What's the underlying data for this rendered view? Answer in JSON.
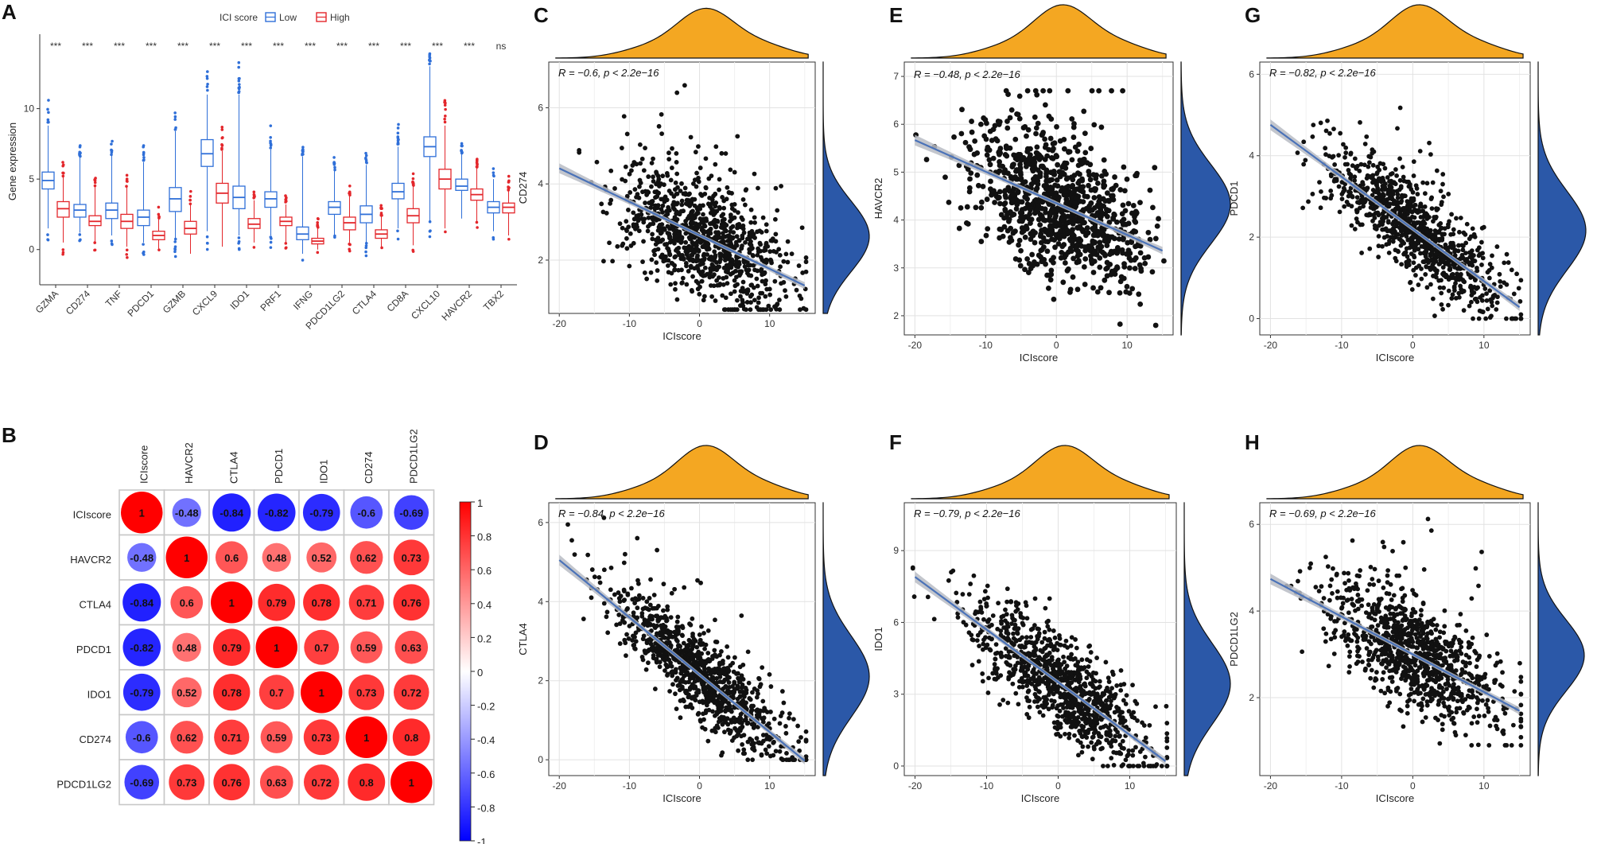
{
  "panels": {
    "A": "A",
    "B": "B",
    "C": "C",
    "D": "D",
    "E": "E",
    "F": "F",
    "G": "G",
    "H": "H"
  },
  "colors": {
    "low": "#2f6fd8",
    "high": "#e3262b",
    "density_top": "#f4a722",
    "density_right": "#2b58a8",
    "points": "#111111",
    "fit_line": "#4a72b8",
    "fit_band": "#b9bcc4"
  },
  "chart_data": [
    {
      "id": "A",
      "type": "box",
      "legend_title": "ICI score",
      "legend": [
        "Low",
        "High"
      ],
      "ylabel": "Gene expression",
      "ylim": [
        -2.5,
        15
      ],
      "yticks": [
        0,
        5,
        10
      ],
      "categories": [
        "GZMA",
        "CD274",
        "TNF",
        "PDCD1",
        "GZMB",
        "CXCL9",
        "IDO1",
        "PRF1",
        "IFNG",
        "PDCD1LG2",
        "CTLA4",
        "CD8A",
        "CXCL10",
        "HAVCR2",
        "TBX2"
      ],
      "significance": [
        "***",
        "***",
        "***",
        "***",
        "***",
        "***",
        "***",
        "***",
        "***",
        "***",
        "***",
        "***",
        "***",
        "***",
        "ns"
      ],
      "series": [
        {
          "name": "Low",
          "box": [
            [
              1.5,
              4.3,
              4.9,
              5.5,
              8.8
            ],
            [
              1.2,
              2.3,
              2.8,
              3.2,
              6.6
            ],
            [
              1.0,
              2.2,
              2.8,
              3.3,
              6.7
            ],
            [
              0.5,
              1.7,
              2.3,
              2.8,
              6.2
            ],
            [
              0.8,
              2.7,
              3.6,
              4.4,
              8.4
            ],
            [
              1.3,
              5.9,
              6.8,
              7.8,
              11.0
            ],
            [
              1.0,
              2.9,
              3.7,
              4.5,
              11.0
            ],
            [
              1.0,
              3.0,
              3.6,
              4.1,
              7.1
            ],
            [
              -0.3,
              0.7,
              1.1,
              1.6,
              6.6
            ],
            [
              1.0,
              2.5,
              3.0,
              3.4,
              5.6
            ],
            [
              0.5,
              1.9,
              2.5,
              3.1,
              6.0
            ],
            [
              1.5,
              3.6,
              4.1,
              4.7,
              7.3
            ],
            [
              2.0,
              6.6,
              7.3,
              8.0,
              13.0
            ],
            [
              2.2,
              4.2,
              4.5,
              5.0,
              6.8
            ],
            [
              1.3,
              2.6,
              3.0,
              3.4,
              5.0
            ]
          ]
        },
        {
          "name": "High",
          "box": [
            [
              0.5,
              2.3,
              2.9,
              3.4,
              5.2
            ],
            [
              0.5,
              1.7,
              2.0,
              2.4,
              4.5
            ],
            [
              0.2,
              1.5,
              2.0,
              2.5,
              4.4
            ],
            [
              0.0,
              0.7,
              1.0,
              1.3,
              2.2
            ],
            [
              -0.3,
              1.1,
              1.5,
              2.0,
              3.2
            ],
            [
              0.2,
              3.3,
              4.0,
              4.7,
              7.0
            ],
            [
              0.5,
              1.5,
              1.8,
              2.2,
              3.5
            ],
            [
              0.5,
              1.7,
              2.0,
              2.3,
              3.2
            ],
            [
              0.0,
              0.4,
              0.6,
              0.8,
              1.5
            ],
            [
              0.5,
              1.4,
              1.9,
              2.3,
              3.8
            ],
            [
              0.2,
              0.8,
              1.1,
              1.4,
              2.4
            ],
            [
              0.3,
              1.9,
              2.4,
              2.9,
              4.5
            ],
            [
              1.5,
              4.3,
              5.0,
              5.7,
              8.8
            ],
            [
              2.0,
              3.5,
              3.9,
              4.3,
              5.8
            ],
            [
              1.0,
              2.6,
              3.0,
              3.3,
              4.2
            ]
          ]
        }
      ]
    },
    {
      "id": "B",
      "type": "heatmap",
      "labels": [
        "ICIscore",
        "HAVCR2",
        "CTLA4",
        "PDCD1",
        "IDO1",
        "CD274",
        "PDCD1LG2"
      ],
      "matrix": [
        [
          1,
          -0.48,
          -0.84,
          -0.82,
          -0.79,
          -0.6,
          -0.69
        ],
        [
          -0.48,
          1,
          0.6,
          0.48,
          0.52,
          0.62,
          0.73
        ],
        [
          -0.84,
          0.6,
          1,
          0.79,
          0.78,
          0.71,
          0.76
        ],
        [
          -0.82,
          0.48,
          0.79,
          1,
          0.7,
          0.59,
          0.63
        ],
        [
          -0.79,
          0.52,
          0.78,
          0.7,
          1,
          0.73,
          0.72
        ],
        [
          -0.6,
          0.62,
          0.71,
          0.59,
          0.73,
          1,
          0.8
        ],
        [
          -0.69,
          0.73,
          0.76,
          0.63,
          0.72,
          0.8,
          1
        ]
      ],
      "cell_labels": [
        [
          "1",
          "-0.48",
          "-0.84",
          "-0.82",
          "-0.79",
          "-0.6",
          "-0.69"
        ],
        [
          "-0.48",
          "1",
          "0.6",
          "0.48",
          "0.52",
          "0.62",
          "0.73"
        ],
        [
          "-0.84",
          "0.6",
          "1",
          "0.79",
          "0.78",
          "0.71",
          "0.76"
        ],
        [
          "-0.82",
          "0.48",
          "0.79",
          "1",
          "0.7",
          "0.59",
          "0.63"
        ],
        [
          "-0.79",
          "0.52",
          "0.78",
          "0.7",
          "1",
          "0.73",
          "0.72"
        ],
        [
          "-0.6",
          "0.62",
          "0.71",
          "0.59",
          "0.73",
          "1",
          "0.8"
        ],
        [
          "-0.69",
          "0.73",
          "0.76",
          "0.63",
          "0.72",
          "0.8",
          "1"
        ]
      ],
      "colorbar_ticks": [
        "1",
        "0.8",
        "0.6",
        "0.4",
        "0.2",
        "0",
        "-0.2",
        "-0.4",
        "-0.6",
        "-0.8",
        "-1"
      ]
    },
    {
      "id": "C",
      "type": "scatter",
      "xlabel": "ICIscore",
      "ylabel": "CD274",
      "xlim": [
        -21.5,
        16.5
      ],
      "ylim": [
        0.6,
        7.2
      ],
      "xticks": [
        "-20",
        "-10",
        "0",
        "10"
      ],
      "yticks": [
        2,
        4,
        6
      ],
      "ytick_labels": [
        "2",
        "4",
        "6"
      ],
      "slope": -0.088,
      "intercept": 2.65,
      "spread": 0.75,
      "n": 1000,
      "ymin_clip": 0.7,
      "ymax_clip": 6.9,
      "r_label": "R = −0.6, p < 2.2e−16",
      "point_size": 2.9,
      "point_hint": "4.4:−20"
    },
    {
      "id": "D",
      "type": "scatter",
      "xlabel": "ICIscore",
      "ylabel": "CTLA4",
      "xlim": [
        -21.5,
        16.5
      ],
      "ylim": [
        -0.4,
        6.5
      ],
      "xticks": [
        "-20",
        "-10",
        "0",
        "10"
      ],
      "yticks": [
        0,
        2,
        4,
        6
      ],
      "ytick_labels": [
        "0",
        "2",
        "4",
        "6"
      ],
      "slope": -0.145,
      "intercept": 2.15,
      "spread": 0.5,
      "n": 1000,
      "ymin_clip": 0.0,
      "ymax_clip": 6.2,
      "r_label": "R = −0.84, p < 2.2e−16",
      "point_size": 2.9,
      "point_hint": ""
    },
    {
      "id": "E",
      "type": "scatter",
      "xlabel": "ICIscore",
      "ylabel": "HAVCR2",
      "xlim": [
        -21.5,
        16.5
      ],
      "ylim": [
        1.6,
        7.3
      ],
      "xticks": [
        "-20",
        "-10",
        "0",
        "10"
      ],
      "yticks": [
        2,
        3,
        4,
        5,
        6,
        7
      ],
      "ytick_labels": [
        "2",
        "3",
        "4",
        "5",
        "6",
        "7"
      ],
      "slope": -0.066,
      "intercept": 4.35,
      "spread": 0.72,
      "n": 1000,
      "ymin_clip": 1.8,
      "ymax_clip": 6.7,
      "r_label": "R = −0.48, p < 2.2e−16",
      "point_size": 3.4,
      "point_hint": ""
    },
    {
      "id": "F",
      "type": "scatter",
      "xlabel": "ICIscore",
      "ylabel": "IDO1",
      "xlim": [
        -21.5,
        16.5
      ],
      "ylim": [
        -0.4,
        11
      ],
      "xticks": [
        "-20",
        "-10",
        "0",
        "10"
      ],
      "yticks": [
        0,
        3,
        6,
        9
      ],
      "ytick_labels": [
        "0",
        "3",
        "6",
        "9"
      ],
      "slope": -0.22,
      "intercept": 3.5,
      "spread": 1.0,
      "n": 1000,
      "ymin_clip": 0.0,
      "ymax_clip": 10.5,
      "r_label": "R = −0.79, p < 2.2e−16",
      "point_size": 2.9,
      "point_hint": ""
    },
    {
      "id": "G",
      "type": "scatter",
      "xlabel": "ICIscore",
      "ylabel": "PDCD1",
      "xlim": [
        -21.5,
        16.5
      ],
      "ylim": [
        -0.4,
        6.3
      ],
      "xticks": [
        "-20",
        "-10",
        "0",
        "10"
      ],
      "yticks": [
        0,
        2,
        4,
        6
      ],
      "ytick_labels": [
        "0",
        "2",
        "4",
        "6"
      ],
      "slope": -0.128,
      "intercept": 2.2,
      "spread": 0.55,
      "n": 1000,
      "ymin_clip": 0.0,
      "ymax_clip": 6.1,
      "r_label": "R = −0.82, p < 2.2e−16",
      "point_size": 2.9,
      "point_hint": ""
    },
    {
      "id": "H",
      "type": "scatter",
      "xlabel": "ICIscore",
      "ylabel": "PDCD1LG2",
      "xlim": [
        -21.5,
        16.5
      ],
      "ylim": [
        0.2,
        6.5
      ],
      "xticks": [
        "-20",
        "-10",
        "0",
        "10"
      ],
      "yticks": [
        2,
        4,
        6
      ],
      "ytick_labels": [
        "2",
        "4",
        "6"
      ],
      "slope": -0.087,
      "intercept": 3.0,
      "spread": 0.62,
      "n": 1000,
      "ymin_clip": 0.9,
      "ymax_clip": 6.3,
      "r_label": "R = −0.69, p < 2.2e−16",
      "point_size": 2.9,
      "point_hint": ""
    }
  ]
}
